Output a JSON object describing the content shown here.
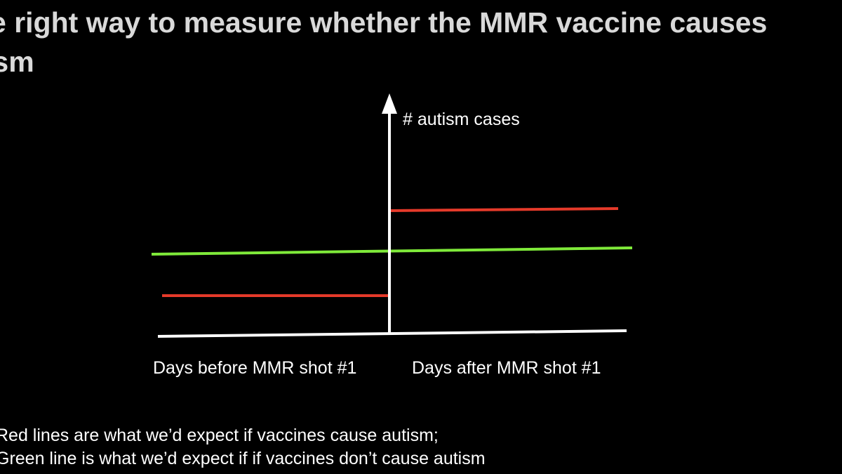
{
  "slide": {
    "title_line1": "e right way to measure whether the MMR vaccine causes",
    "title_line2": "ism"
  },
  "diagram": {
    "y_axis_label": "# autism cases",
    "x_label_before": "Days before MMR shot #1",
    "x_label_after": "Days after MMR shot #1",
    "colors": {
      "background": "#000000",
      "axes": "#ffffff",
      "red_line": "#e53a2a",
      "green_line": "#7fea3a",
      "title": "#d9d9d9"
    }
  },
  "captions": {
    "line1": "Red lines are what we’d expect if vaccines cause autism;",
    "line2": "Green line is what we’d expect if if vaccines don’t cause autism"
  }
}
